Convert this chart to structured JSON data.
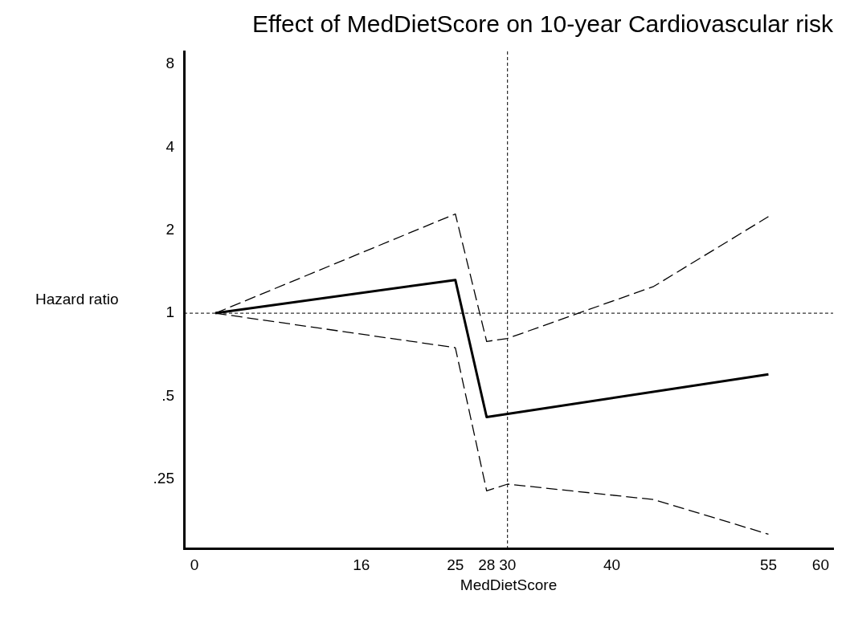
{
  "chart_data": {
    "type": "line",
    "title": "Effect of MedDietScore on 10-year Cardiovascular risk",
    "xlabel": "MedDietScore",
    "ylabel": "Hazard ratio",
    "log": "y",
    "grid": false,
    "legend": false,
    "marker": "none",
    "xlim": [
      -1,
      61.2
    ],
    "xticks": [
      0,
      16,
      25,
      28,
      30,
      40,
      55,
      60
    ],
    "ylim": [
      0.14,
      8.9
    ],
    "yticks": [
      {
        "value": 0.25,
        "label": ".25"
      },
      {
        "value": 0.5,
        "label": ".5"
      },
      1,
      2,
      4,
      8
    ],
    "series": [
      {
        "color": "#000000",
        "line_style": "solid",
        "x": [
          2,
          25,
          28,
          55
        ],
        "values": [
          1,
          1.32,
          0.42,
          0.6
        ]
      },
      {
        "color": "#000000",
        "line_style": "dashed",
        "x": [
          2,
          25,
          28,
          30,
          44,
          55
        ],
        "values": [
          1,
          2.29,
          0.79,
          0.81,
          1.25,
          2.24
        ]
      },
      {
        "color": "#000000",
        "line_style": "dashed",
        "x": [
          2,
          25,
          28,
          30,
          44,
          55
        ],
        "values": [
          1,
          0.75,
          0.227,
          0.24,
          0.211,
          0.158
        ]
      }
    ],
    "ref_lines": [
      {
        "axis": "y",
        "value": 1,
        "line_style": "dotted",
        "color": "#000000"
      },
      {
        "axis": "x",
        "value": 30,
        "line_style": "dotted",
        "color": "#000000"
      }
    ]
  }
}
